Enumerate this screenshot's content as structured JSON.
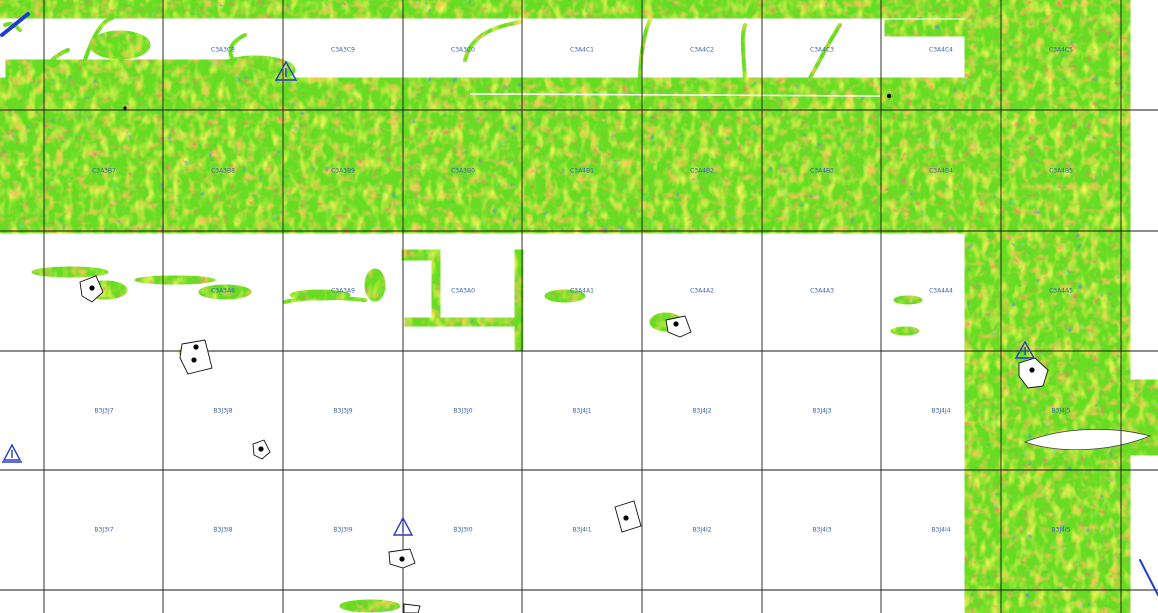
{
  "map": {
    "colors": {
      "grid_line": "#1a1a1a",
      "background": "#ffffff",
      "label": "#3a5fae",
      "survey_base": "#66dd22",
      "survey_yellow": "#f2ee1a",
      "survey_orange": "#ff9a1a",
      "survey_red": "#e8342a",
      "survey_magenta": "#ff66cc",
      "survey_blue": "#1a3fd0",
      "survey_cyan": "#22ccaa",
      "marker_triangle": "#2a3cc8",
      "marker_dot": "#000000"
    },
    "tiles": [
      {
        "id": "tile-c3a3c8",
        "label": "C3A3C8"
      },
      {
        "id": "tile-c3a3c9",
        "label": "C3A3C9"
      },
      {
        "id": "tile-c3a3c0",
        "label": "C3A3C0"
      },
      {
        "id": "tile-c3a4c1",
        "label": "C3A4C1"
      },
      {
        "id": "tile-c3a4c2",
        "label": "C3A4C2"
      },
      {
        "id": "tile-c3a4c3",
        "label": "C3A4C3"
      },
      {
        "id": "tile-c3a4c4",
        "label": "C3A4C4"
      },
      {
        "id": "tile-c3a4c5",
        "label": "C3A4C5"
      },
      {
        "id": "tile-c3a3b7",
        "label": "C3A3B7"
      },
      {
        "id": "tile-c3a3b8",
        "label": "C3A3B8"
      },
      {
        "id": "tile-c3a3b9",
        "label": "C3A3B9"
      },
      {
        "id": "tile-c3a3b0",
        "label": "C3A3B0"
      },
      {
        "id": "tile-c3a4b1",
        "label": "C3A4B1"
      },
      {
        "id": "tile-c3a4b2",
        "label": "C3A4B2"
      },
      {
        "id": "tile-c3a4b3",
        "label": "C3A4B3"
      },
      {
        "id": "tile-c3a4b4",
        "label": "C3A4B4"
      },
      {
        "id": "tile-c3a4b5",
        "label": "C3A4B5"
      },
      {
        "id": "tile-c3a3a8",
        "label": "C3A3A8"
      },
      {
        "id": "tile-c3a3a9",
        "label": "C3A3A9"
      },
      {
        "id": "tile-c3a3a0",
        "label": "C3A3A0"
      },
      {
        "id": "tile-c3a4a1",
        "label": "C3A4A1"
      },
      {
        "id": "tile-c3a4a2",
        "label": "C3A4A2"
      },
      {
        "id": "tile-c3a4a3",
        "label": "C3A4A3"
      },
      {
        "id": "tile-c3a4a4",
        "label": "C3A4A4"
      },
      {
        "id": "tile-c3a4a5",
        "label": "C3A4A5"
      },
      {
        "id": "tile-b3j3j7",
        "label": "B3J3J7"
      },
      {
        "id": "tile-b3j3j8",
        "label": "B3J3J8"
      },
      {
        "id": "tile-b3j3j9",
        "label": "B3J3J9"
      },
      {
        "id": "tile-b3j3j0",
        "label": "B3J3J0"
      },
      {
        "id": "tile-b3j4j1",
        "label": "B3J4J1"
      },
      {
        "id": "tile-b3j4j2",
        "label": "B3J4J2"
      },
      {
        "id": "tile-b3j4j3",
        "label": "B3J4J3"
      },
      {
        "id": "tile-b3j4j4",
        "label": "B3J4J4"
      },
      {
        "id": "tile-b3j4j5",
        "label": "B3J4J5"
      },
      {
        "id": "tile-b3j3i7",
        "label": "B3J3I7"
      },
      {
        "id": "tile-b3j3i8",
        "label": "B3J3I8"
      },
      {
        "id": "tile-b3j3i9",
        "label": "B3J3I9"
      },
      {
        "id": "tile-b3j3i0",
        "label": "B3J3I0"
      },
      {
        "id": "tile-b3j4i1",
        "label": "B3J4I1"
      },
      {
        "id": "tile-b3j4i2",
        "label": "B3J4I2"
      },
      {
        "id": "tile-b3j4i3",
        "label": "B3J4I3"
      },
      {
        "id": "tile-b3j4i4",
        "label": "B3J4I4"
      },
      {
        "id": "tile-b3j4i5",
        "label": "B3J4I5"
      }
    ]
  }
}
